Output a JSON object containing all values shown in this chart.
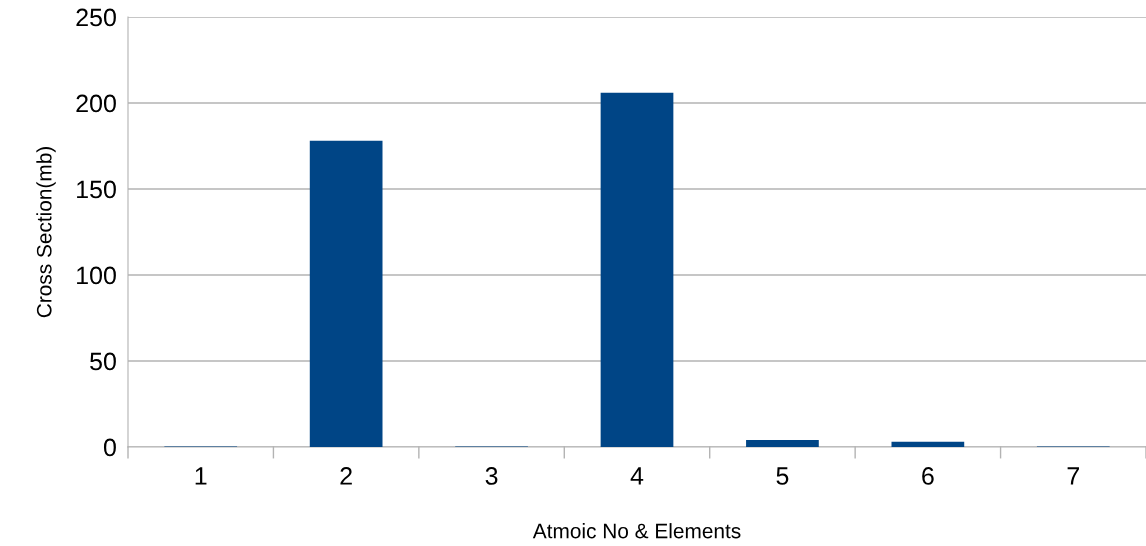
{
  "chart_data": {
    "type": "bar",
    "xlabel": "Atmoic No & Elements",
    "ylabel": "Cross Section(mb)",
    "categories": [
      "1",
      "2",
      "3",
      "4",
      "5",
      "6",
      "7"
    ],
    "values": [
      0.3,
      178,
      0.3,
      206,
      4,
      3,
      0.3
    ],
    "color": "#004586",
    "ylim": [
      0,
      250
    ],
    "yticks": [
      0,
      50,
      100,
      150,
      200,
      250
    ],
    "grid": "y",
    "legend": false
  }
}
